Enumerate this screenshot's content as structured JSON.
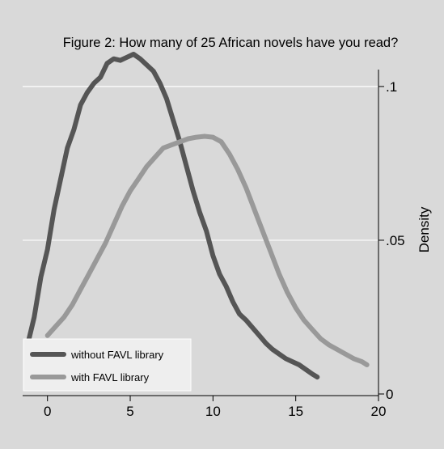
{
  "chart_data": {
    "type": "line",
    "title": "Figure 2: How many of 25 African novels have you read?",
    "xlabel": "",
    "ylabel": "Density",
    "xlim": [
      -1.5,
      20
    ],
    "ylim": [
      0,
      0.1055
    ],
    "x_ticks": [
      0,
      5,
      10,
      15,
      20
    ],
    "x_tick_labels": [
      "0",
      "5",
      "10",
      "15",
      "20"
    ],
    "y_ticks": [
      0,
      0.05,
      0.1
    ],
    "y_tick_labels": [
      "0",
      ".05",
      ".1"
    ],
    "y_axis_side": "right",
    "grid": true,
    "legend_position": "bottom-left",
    "series": [
      {
        "name": "without FAVL library",
        "color": "#555555",
        "points": [
          [
            -1.2,
            0.016
          ],
          [
            -0.8,
            0.025
          ],
          [
            -0.4,
            0.038
          ],
          [
            0.0,
            0.047
          ],
          [
            0.4,
            0.06
          ],
          [
            0.8,
            0.07
          ],
          [
            1.2,
            0.08
          ],
          [
            1.6,
            0.086
          ],
          [
            2.0,
            0.094
          ],
          [
            2.4,
            0.098
          ],
          [
            2.8,
            0.101
          ],
          [
            3.2,
            0.103
          ],
          [
            3.6,
            0.1075
          ],
          [
            4.0,
            0.109
          ],
          [
            4.4,
            0.1085
          ],
          [
            4.8,
            0.1095
          ],
          [
            5.2,
            0.1105
          ],
          [
            5.6,
            0.109
          ],
          [
            6.0,
            0.107
          ],
          [
            6.4,
            0.105
          ],
          [
            6.8,
            0.101
          ],
          [
            7.2,
            0.096
          ],
          [
            7.6,
            0.089
          ],
          [
            8.0,
            0.082
          ],
          [
            8.4,
            0.074
          ],
          [
            8.8,
            0.066
          ],
          [
            9.2,
            0.059
          ],
          [
            9.6,
            0.053
          ],
          [
            10.0,
            0.045
          ],
          [
            10.4,
            0.039
          ],
          [
            10.8,
            0.035
          ],
          [
            11.2,
            0.03
          ],
          [
            11.6,
            0.026
          ],
          [
            12.0,
            0.024
          ],
          [
            12.4,
            0.0215
          ],
          [
            12.8,
            0.019
          ],
          [
            13.2,
            0.0165
          ],
          [
            13.6,
            0.0145
          ],
          [
            14.0,
            0.013
          ],
          [
            14.4,
            0.0115
          ],
          [
            14.8,
            0.0105
          ],
          [
            15.2,
            0.0095
          ],
          [
            15.6,
            0.008
          ],
          [
            16.0,
            0.0065
          ],
          [
            16.3,
            0.0055
          ]
        ]
      },
      {
        "name": "with FAVL library",
        "color": "#999999",
        "points": [
          [
            0.0,
            0.019
          ],
          [
            0.5,
            0.022
          ],
          [
            1.0,
            0.025
          ],
          [
            1.5,
            0.029
          ],
          [
            2.0,
            0.034
          ],
          [
            2.5,
            0.039
          ],
          [
            3.0,
            0.044
          ],
          [
            3.5,
            0.049
          ],
          [
            4.0,
            0.055
          ],
          [
            4.5,
            0.061
          ],
          [
            5.0,
            0.066
          ],
          [
            5.5,
            0.07
          ],
          [
            6.0,
            0.074
          ],
          [
            6.5,
            0.077
          ],
          [
            7.0,
            0.08
          ],
          [
            7.5,
            0.081
          ],
          [
            8.0,
            0.082
          ],
          [
            8.5,
            0.083
          ],
          [
            9.0,
            0.0835
          ],
          [
            9.5,
            0.0838
          ],
          [
            10.0,
            0.0835
          ],
          [
            10.5,
            0.082
          ],
          [
            11.0,
            0.078
          ],
          [
            11.5,
            0.073
          ],
          [
            12.0,
            0.067
          ],
          [
            12.5,
            0.06
          ],
          [
            13.0,
            0.053
          ],
          [
            13.5,
            0.046
          ],
          [
            14.0,
            0.039
          ],
          [
            14.5,
            0.033
          ],
          [
            15.0,
            0.028
          ],
          [
            15.5,
            0.024
          ],
          [
            16.0,
            0.021
          ],
          [
            16.5,
            0.018
          ],
          [
            17.0,
            0.016
          ],
          [
            17.5,
            0.0145
          ],
          [
            18.0,
            0.013
          ],
          [
            18.5,
            0.0115
          ],
          [
            19.0,
            0.0105
          ],
          [
            19.3,
            0.0095
          ]
        ]
      }
    ]
  }
}
